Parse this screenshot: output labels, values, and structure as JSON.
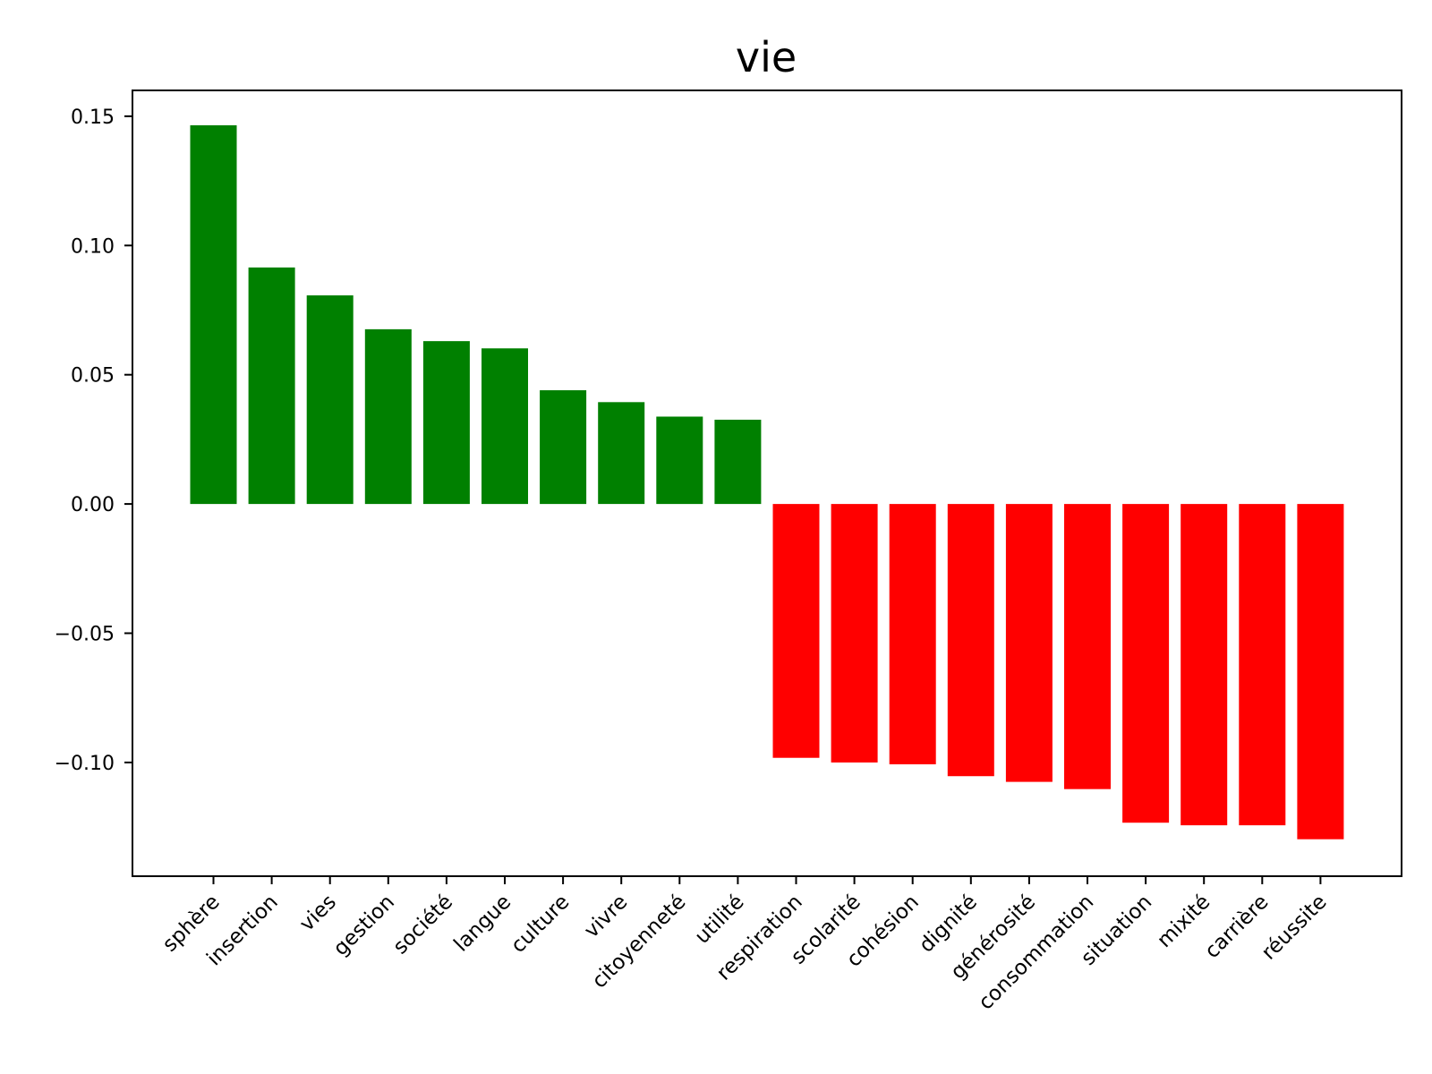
{
  "chart_data": {
    "type": "bar",
    "title": "vie",
    "xlabel": "",
    "ylabel": "",
    "categories": [
      "sphère",
      "insertion",
      "vies",
      "gestion",
      "société",
      "langue",
      "culture",
      "vivre",
      "citoyenneté",
      "utilité",
      "respiration",
      "scolarité",
      "cohésion",
      "dignité",
      "générosité",
      "consommation",
      "situation",
      "mixité",
      "carrière",
      "réussite"
    ],
    "values": [
      0.1465,
      0.0915,
      0.0807,
      0.0676,
      0.063,
      0.0602,
      0.044,
      0.0394,
      0.0338,
      0.0326,
      -0.0982,
      -0.1,
      -0.1007,
      -0.1053,
      -0.1075,
      -0.1103,
      -0.1233,
      -0.1243,
      -0.1243,
      -0.1297
    ],
    "ylim": [
      -0.144,
      0.16
    ],
    "yticks": [
      0.15,
      0.1,
      0.05,
      0.0,
      -0.05,
      -0.1
    ],
    "ytick_labels": [
      "0.15",
      "0.10",
      "0.05",
      "0.00",
      "−0.05",
      "−0.10"
    ],
    "colors": {
      "positive": "#008000",
      "negative": "#ff0000"
    },
    "grid": false,
    "legend": "none"
  }
}
